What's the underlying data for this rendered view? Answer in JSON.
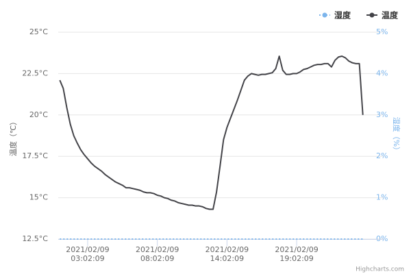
{
  "chart_data": {
    "type": "line",
    "categories": [
      null,
      null,
      null,
      null,
      null,
      null,
      null,
      null,
      "2021/02/09 03:02:09",
      null,
      null,
      null,
      null,
      null,
      null,
      null,
      null,
      null,
      null,
      null,
      null,
      null,
      null,
      null,
      null,
      null,
      null,
      null,
      "2021/02/09 08:02:09",
      null,
      null,
      null,
      null,
      null,
      null,
      null,
      null,
      null,
      null,
      null,
      null,
      null,
      null,
      null,
      null,
      null,
      null,
      null,
      "2021/02/09 14:02:09",
      null,
      null,
      null,
      null,
      null,
      null,
      null,
      null,
      null,
      null,
      null,
      null,
      null,
      null,
      null,
      null,
      null,
      null,
      null,
      "2021/02/09 19:02:09",
      null,
      null,
      null,
      null,
      null,
      null,
      null,
      null,
      null,
      null,
      null,
      null,
      null,
      null,
      null,
      null,
      null,
      null,
      null
    ],
    "series": [
      {
        "name": "湿度",
        "color": "#7cb5ec",
        "axis": "y2",
        "values": [
          0,
          0,
          0,
          0,
          0,
          0,
          0,
          0,
          0,
          0,
          0,
          0,
          0,
          0,
          0,
          0,
          0,
          0,
          0,
          0,
          0,
          0,
          0,
          0,
          0,
          0,
          0,
          0,
          0,
          0,
          0,
          0,
          0,
          0,
          0,
          0,
          0,
          0,
          0,
          0,
          0,
          0,
          0,
          0,
          0,
          0,
          0,
          0,
          0,
          0,
          0,
          0,
          0,
          0,
          0,
          0,
          0,
          0,
          0,
          0,
          0,
          0,
          0,
          0,
          0,
          0,
          0,
          0,
          0,
          0,
          0,
          0,
          0,
          0,
          0,
          0,
          0,
          0,
          0,
          0,
          0,
          0,
          0,
          0,
          0,
          0,
          0,
          0
        ]
      },
      {
        "name": "温度",
        "color": "#434348",
        "values": [
          22.1,
          21.6,
          20.45,
          19.45,
          18.75,
          18.3,
          17.9,
          17.6,
          17.35,
          17.1,
          16.9,
          16.75,
          16.6,
          16.4,
          16.25,
          16.1,
          15.95,
          15.85,
          15.75,
          15.6,
          15.6,
          15.55,
          15.5,
          15.45,
          15.35,
          15.3,
          15.3,
          15.25,
          15.15,
          15.1,
          15.0,
          14.95,
          14.85,
          14.8,
          14.7,
          14.65,
          14.6,
          14.55,
          14.55,
          14.5,
          14.5,
          14.45,
          14.35,
          14.3,
          14.3,
          15.35,
          16.9,
          18.5,
          19.25,
          19.8,
          20.35,
          20.9,
          21.5,
          22.1,
          22.35,
          22.5,
          22.45,
          22.4,
          22.45,
          22.45,
          22.5,
          22.55,
          22.8,
          23.55,
          22.7,
          22.45,
          22.45,
          22.5,
          22.5,
          22.6,
          22.75,
          22.8,
          22.9,
          23.0,
          23.05,
          23.05,
          23.1,
          23.1,
          22.9,
          23.3,
          23.5,
          23.55,
          23.45,
          23.25,
          23.15,
          23.1,
          23.1,
          20.0
        ]
      }
    ],
    "y_label": "温度（℃）",
    "y2_label": "湿度（%）",
    "ylim": [
      12.5,
      25
    ],
    "yticks": [
      {
        "value": 12.5,
        "label": "12.5°C"
      },
      {
        "value": 15,
        "label": "15°C"
      },
      {
        "value": 17.5,
        "label": "17.5°C"
      },
      {
        "value": 20,
        "label": "20°C"
      },
      {
        "value": 22.5,
        "label": "22.5°C"
      },
      {
        "value": 25,
        "label": "25°C"
      }
    ],
    "y2lim": [
      0,
      5
    ],
    "y2ticks": [
      {
        "value": 0,
        "label": "0%"
      },
      {
        "value": 1,
        "label": "1%"
      },
      {
        "value": 2,
        "label": "2%"
      },
      {
        "value": 3,
        "label": "3%"
      },
      {
        "value": 4,
        "label": "4%"
      },
      {
        "value": 5,
        "label": "5%"
      }
    ],
    "grid": true,
    "legend": "top-right",
    "credits": "Highcharts.com"
  }
}
